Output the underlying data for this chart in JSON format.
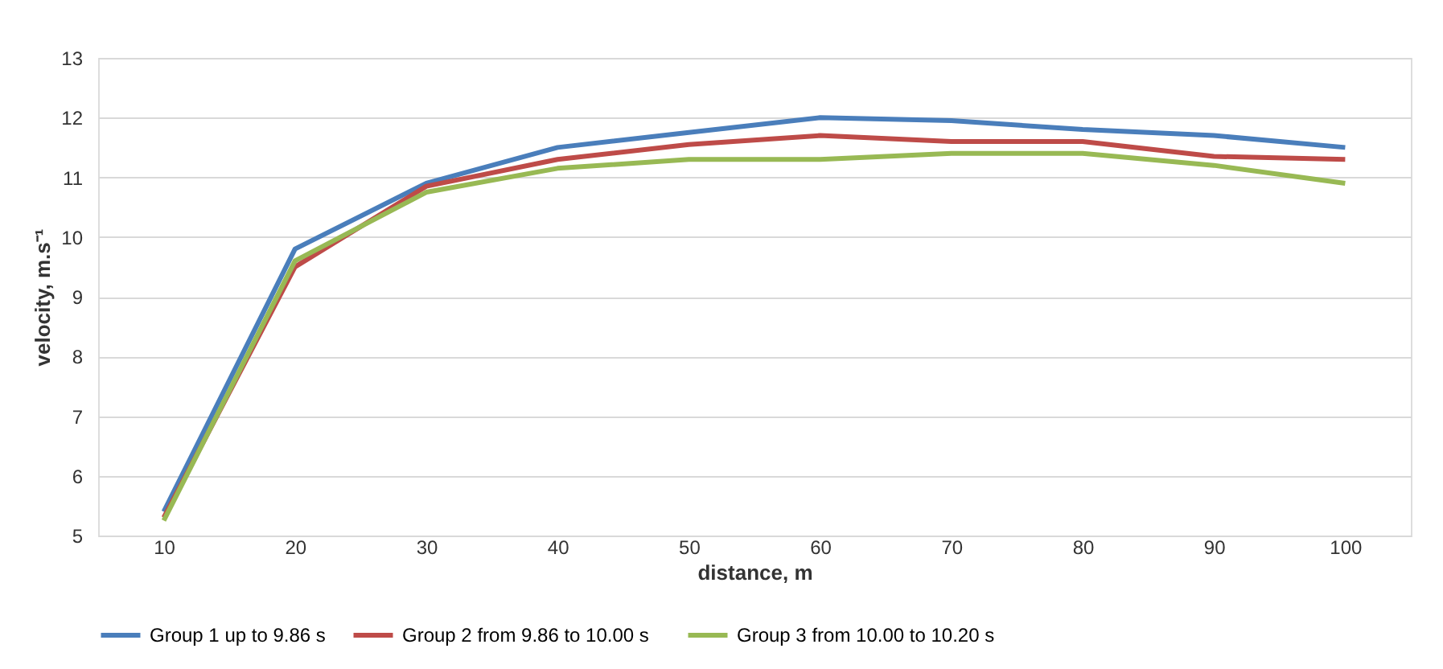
{
  "chart_data": {
    "type": "line",
    "xlabel": "distance, m",
    "ylabel": "velocity, m.s⁻¹",
    "categories": [
      "10",
      "20",
      "30",
      "40",
      "50",
      "60",
      "70",
      "80",
      "90",
      "100"
    ],
    "series": [
      {
        "name": "Group 1 up to 9.86 s",
        "color": "#4a7ebb",
        "values": [
          5.4,
          9.8,
          10.9,
          11.5,
          11.75,
          12.0,
          11.95,
          11.8,
          11.7,
          11.5
        ]
      },
      {
        "name": "Group 2  from 9.86  to 10.00 s",
        "color": "#be4b48",
        "values": [
          5.3,
          9.5,
          10.85,
          11.3,
          11.55,
          11.7,
          11.6,
          11.6,
          11.35,
          11.3
        ]
      },
      {
        "name": "Group 3 from 10.00 to 10.20 s",
        "color": "#98b954",
        "values": [
          5.25,
          9.6,
          10.75,
          11.15,
          11.3,
          11.3,
          11.4,
          11.4,
          11.2,
          10.9
        ]
      }
    ],
    "ylim": [
      5,
      13
    ],
    "yticks": [
      5,
      6,
      7,
      8,
      9,
      10,
      11,
      12,
      13
    ],
    "grid": "y",
    "legend": "bottom",
    "marker": "none",
    "line_style": "solid"
  }
}
